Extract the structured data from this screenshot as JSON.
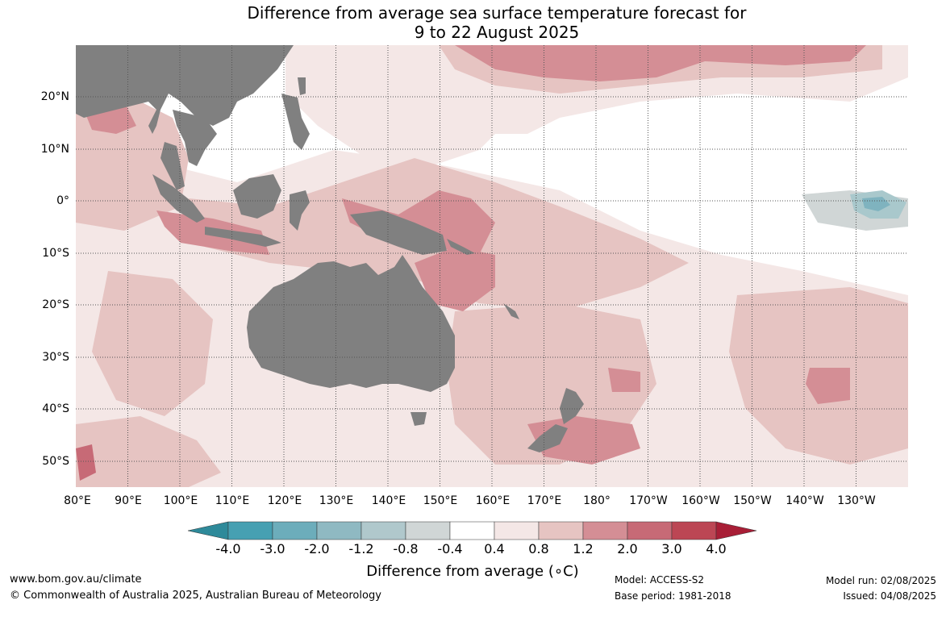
{
  "title": {
    "line1": "Difference from average sea surface temperature forecast for",
    "line2": "9 to 22 August 2025"
  },
  "axes": {
    "lat_ticks": [
      "20°N",
      "10°N",
      "0°",
      "10°S",
      "20°S",
      "30°S",
      "40°S",
      "50°S"
    ],
    "lon_ticks": [
      "80°E",
      "90°E",
      "100°E",
      "110°E",
      "120°E",
      "130°E",
      "140°E",
      "150°E",
      "160°E",
      "170°E",
      "180°",
      "170°W",
      "160°W",
      "150°W",
      "140°W",
      "130°W"
    ],
    "lat_range": [
      -55,
      30
    ],
    "lon_range": [
      80,
      240
    ]
  },
  "colorbar": {
    "title": "Difference from average (∘C)",
    "tick_labels": [
      "-4.0",
      "-3.0",
      "-2.0",
      "-1.2",
      "-0.8",
      "-0.4",
      "0.4",
      "0.8",
      "1.2",
      "2.0",
      "3.0",
      "4.0"
    ],
    "colors": [
      "#2e8a9a",
      "#46a0b2",
      "#6cadbb",
      "#8fb9c2",
      "#b0c8cc",
      "#d0d6d6",
      "#ffffff",
      "#f4e7e6",
      "#e6c4c2",
      "#d48e95",
      "#c76a76",
      "#bc4654",
      "#a81e36"
    ]
  },
  "colors": {
    "land": "#808080",
    "grid": "#555555",
    "warm_light": "#f4e7e6",
    "warm_mid": "#e6c4c2",
    "warm_strong": "#d48e95",
    "warm_stronger": "#c76a76",
    "cool_light": "#d0d6d6",
    "cool_mid": "#a9c8cc",
    "cool_strong": "#7fb3bf"
  },
  "footer": {
    "website": "www.bom.gov.au/climate",
    "copyright": "© Commonwealth of Australia 2025, Australian Bureau of Meteorology",
    "model": "Model: ACCESS-S2",
    "base_period": "Base period: 1981-2018",
    "model_run": "Model run: 02/08/2025",
    "issued": "Issued: 04/08/2025"
  }
}
